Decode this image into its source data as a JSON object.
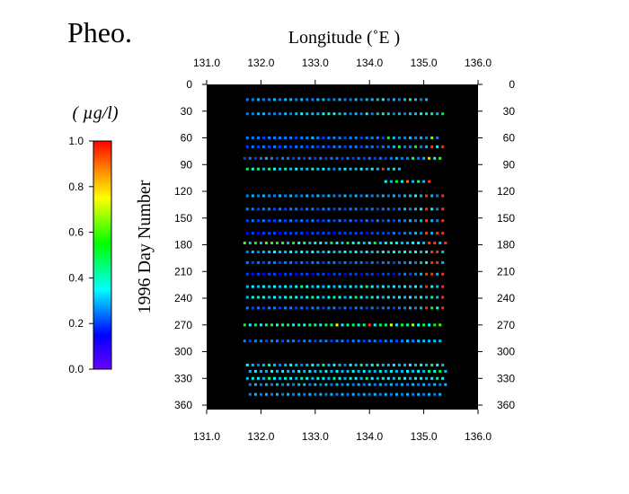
{
  "chart_data": {
    "type": "scatter",
    "title": "Pheo.",
    "xlabel": "Longitude (˚E )",
    "ylabel": "1996 Day Number",
    "colorbar_label": "( µg/l)",
    "xlim": [
      131.0,
      136.0
    ],
    "ylim": [
      0,
      365
    ],
    "y_inverted": true,
    "plot_background": "#000000",
    "x_ticks": [
      "131.0",
      "132.0",
      "133.0",
      "134.0",
      "135.0",
      "136.0"
    ],
    "x_tick_values": [
      131.0,
      132.0,
      133.0,
      134.0,
      135.0,
      136.0
    ],
    "y_ticks": [
      "0",
      "30",
      "60",
      "90",
      "120",
      "150",
      "180",
      "210",
      "240",
      "270",
      "300",
      "330",
      "360"
    ],
    "y_tick_values": [
      0,
      30,
      60,
      90,
      120,
      150,
      180,
      210,
      240,
      270,
      300,
      330,
      360
    ],
    "colorbar_ticks": [
      "0.0",
      "0.2",
      "0.4",
      "0.6",
      "0.8",
      "1.0"
    ],
    "colorbar_tick_values": [
      0.0,
      0.2,
      0.4,
      0.6,
      0.8,
      1.0
    ],
    "colorscale": "rainbow (violet at 0.0 to red at 1.0)",
    "cruises": [
      {
        "day": 17,
        "lon_start": 131.75,
        "lon_end": 135.1,
        "step": 0.1,
        "values": [
          0.25,
          0.25,
          0.3,
          0.25,
          0.25,
          0.3,
          0.25,
          0.3,
          0.3,
          0.25,
          0.3,
          0.25,
          0.25,
          0.3,
          0.3,
          0.25,
          0.25,
          0.3,
          0.25,
          0.25,
          0.3,
          0.25,
          0.3,
          0.3,
          0.3,
          0.35,
          0.25,
          0.3,
          0.25,
          0.3,
          0.45,
          0.3,
          0.25,
          0.3
        ]
      },
      {
        "day": 33,
        "lon_start": 131.75,
        "lon_end": 135.4,
        "step": 0.1,
        "values": [
          0.25,
          0.25,
          0.3,
          0.3,
          0.25,
          0.25,
          0.25,
          0.3,
          0.25,
          0.3,
          0.35,
          0.3,
          0.3,
          0.3,
          0.35,
          0.4,
          0.35,
          0.3,
          0.3,
          0.25,
          0.3,
          0.25,
          0.35,
          0.25,
          0.3,
          0.45,
          0.3,
          0.25,
          0.3,
          0.25,
          0.3,
          0.3,
          0.35,
          0.45,
          0.45,
          0.3,
          0.55,
          0.35
        ]
      },
      {
        "day": 60,
        "lon_start": 131.75,
        "lon_end": 135.3,
        "step": 0.1,
        "values": [
          0.25,
          0.25,
          0.25,
          0.2,
          0.25,
          0.25,
          0.25,
          0.25,
          0.25,
          0.2,
          0.25,
          0.25,
          0.3,
          0.25,
          0.2,
          0.25,
          0.25,
          0.25,
          0.2,
          0.25,
          0.25,
          0.2,
          0.25,
          0.25,
          0.25,
          0.2,
          0.55,
          0.3,
          0.25,
          0.25,
          0.3,
          0.25,
          0.3,
          0.25,
          0.65,
          0.25
        ]
      },
      {
        "day": 70,
        "lon_start": 131.75,
        "lon_end": 135.35,
        "step": 0.1,
        "values": [
          0.2,
          0.25,
          0.2,
          0.25,
          0.2,
          0.25,
          0.2,
          0.25,
          0.2,
          0.25,
          0.25,
          0.2,
          0.25,
          0.2,
          0.25,
          0.2,
          0.25,
          0.25,
          0.2,
          0.25,
          0.25,
          0.2,
          0.25,
          0.25,
          0.2,
          0.25,
          0.25,
          0.3,
          0.5,
          0.25,
          0.25,
          0.55,
          0.25,
          0.3,
          0.95,
          0.35,
          0.95
        ]
      },
      {
        "day": 83,
        "lon_start": 131.7,
        "lon_end": 135.3,
        "step": 0.1,
        "values": [
          0.2,
          0.25,
          0.2,
          0.25,
          0.3,
          0.25,
          0.2,
          0.25,
          0.25,
          0.2,
          0.25,
          0.2,
          0.25,
          0.2,
          0.25,
          0.2,
          0.25,
          0.25,
          0.2,
          0.25,
          0.2,
          0.25,
          0.2,
          0.25,
          0.2,
          0.25,
          0.2,
          0.25,
          0.3,
          0.25,
          0.25,
          0.45,
          0.25,
          0.3,
          0.8,
          0.35,
          0.6
        ]
      },
      {
        "day": 95,
        "lon_start": 131.75,
        "lon_end": 134.6,
        "step": 0.1,
        "values": [
          0.5,
          0.35,
          0.45,
          0.3,
          0.5,
          0.35,
          0.3,
          0.45,
          0.3,
          0.35,
          0.3,
          0.3,
          0.45,
          0.3,
          0.35,
          0.3,
          0.25,
          0.3,
          0.35,
          0.3,
          0.3,
          0.35,
          0.3,
          0.35,
          0.3,
          0.95,
          0.3,
          0.45,
          0.3,
          0.35
        ]
      },
      {
        "day": 109,
        "lon_start": 134.3,
        "lon_end": 135.1,
        "step": 0.1,
        "values": [
          0.35,
          0.3,
          0.55,
          0.35,
          0.9,
          0.3,
          0.45,
          0.3,
          0.95
        ]
      },
      {
        "day": 125,
        "lon_start": 131.75,
        "lon_end": 135.35,
        "step": 0.1,
        "values": [
          0.25,
          0.3,
          0.25,
          0.3,
          0.25,
          0.25,
          0.3,
          0.25,
          0.3,
          0.25,
          0.25,
          0.3,
          0.25,
          0.3,
          0.25,
          0.3,
          0.25,
          0.25,
          0.3,
          0.25,
          0.3,
          0.25,
          0.3,
          0.25,
          0.25,
          0.3,
          0.25,
          0.3,
          0.25,
          0.3,
          0.3,
          0.35,
          0.3,
          0.95,
          0.3,
          0.25,
          0.95
        ]
      },
      {
        "day": 140,
        "lon_start": 131.75,
        "lon_end": 135.35,
        "step": 0.1,
        "values": [
          0.25,
          0.25,
          0.2,
          0.25,
          0.25,
          0.2,
          0.25,
          0.2,
          0.25,
          0.25,
          0.2,
          0.25,
          0.25,
          0.2,
          0.25,
          0.25,
          0.2,
          0.25,
          0.2,
          0.25,
          0.25,
          0.2,
          0.25,
          0.25,
          0.2,
          0.25,
          0.25,
          0.2,
          0.25,
          0.3,
          0.25,
          0.3,
          0.35,
          0.95,
          0.35,
          0.25,
          0.95
        ]
      },
      {
        "day": 153,
        "lon_start": 131.75,
        "lon_end": 135.35,
        "step": 0.1,
        "values": [
          0.2,
          0.25,
          0.2,
          0.25,
          0.2,
          0.2,
          0.25,
          0.2,
          0.25,
          0.2,
          0.25,
          0.2,
          0.25,
          0.2,
          0.2,
          0.25,
          0.2,
          0.25,
          0.2,
          0.25,
          0.2,
          0.2,
          0.25,
          0.2,
          0.25,
          0.2,
          0.25,
          0.2,
          0.25,
          0.25,
          0.3,
          0.25,
          0.3,
          0.95,
          0.3,
          0.25,
          0.95
        ]
      },
      {
        "day": 167,
        "lon_start": 131.75,
        "lon_end": 135.35,
        "step": 0.1,
        "values": [
          0.15,
          0.2,
          0.15,
          0.2,
          0.2,
          0.2,
          0.15,
          0.2,
          0.2,
          0.2,
          0.2,
          0.15,
          0.2,
          0.2,
          0.2,
          0.2,
          0.15,
          0.2,
          0.2,
          0.2,
          0.2,
          0.2,
          0.15,
          0.2,
          0.2,
          0.2,
          0.2,
          0.25,
          0.2,
          0.25,
          0.25,
          0.3,
          0.25,
          0.95,
          0.3,
          0.95,
          0.95
        ]
      },
      {
        "day": 178,
        "lon_start": 131.7,
        "lon_end": 135.4,
        "step": 0.1,
        "values": [
          0.6,
          0.3,
          0.55,
          0.3,
          0.6,
          0.5,
          0.55,
          0.45,
          0.3,
          0.55,
          0.35,
          0.45,
          0.3,
          0.4,
          0.35,
          0.3,
          0.5,
          0.35,
          0.3,
          0.55,
          0.35,
          0.4,
          0.3,
          0.35,
          0.5,
          0.3,
          0.35,
          0.4,
          0.35,
          0.3,
          0.3,
          0.35,
          0.35,
          0.3,
          0.95,
          0.95,
          0.3,
          0.95
        ]
      },
      {
        "day": 188,
        "lon_start": 131.75,
        "lon_end": 135.4,
        "step": 0.1,
        "values": [
          0.25,
          0.3,
          0.25,
          0.3,
          0.3,
          0.35,
          0.3,
          0.3,
          0.35,
          0.3,
          0.35,
          0.3,
          0.35,
          0.3,
          0.3,
          0.35,
          0.3,
          0.3,
          0.35,
          0.3,
          0.35,
          0.3,
          0.35,
          0.3,
          0.3,
          0.35,
          0.3,
          0.35,
          0.3,
          0.35,
          0.3,
          0.35,
          0.3,
          0.35,
          0.95,
          0.95,
          0.3,
          0.95
        ]
      },
      {
        "day": 200,
        "lon_start": 131.75,
        "lon_end": 135.35,
        "step": 0.1,
        "values": [
          0.25,
          0.2,
          0.25,
          0.2,
          0.25,
          0.25,
          0.2,
          0.25,
          0.25,
          0.2,
          0.25,
          0.2,
          0.25,
          0.25,
          0.2,
          0.25,
          0.25,
          0.2,
          0.25,
          0.2,
          0.25,
          0.25,
          0.2,
          0.25,
          0.2,
          0.25,
          0.25,
          0.2,
          0.25,
          0.25,
          0.3,
          0.25,
          0.3,
          0.35,
          0.95,
          0.95,
          0.3
        ]
      },
      {
        "day": 213,
        "lon_start": 131.75,
        "lon_end": 135.35,
        "step": 0.1,
        "values": [
          0.2,
          0.15,
          0.2,
          0.15,
          0.2,
          0.2,
          0.15,
          0.2,
          0.2,
          0.15,
          0.2,
          0.2,
          0.15,
          0.2,
          0.2,
          0.15,
          0.2,
          0.2,
          0.15,
          0.2,
          0.2,
          0.15,
          0.2,
          0.2,
          0.15,
          0.2,
          0.2,
          0.15,
          0.2,
          0.25,
          0.2,
          0.25,
          0.3,
          0.95,
          0.95,
          0.3,
          0.95
        ]
      },
      {
        "day": 227,
        "lon_start": 131.75,
        "lon_end": 135.35,
        "step": 0.1,
        "values": [
          0.3,
          0.35,
          0.3,
          0.35,
          0.3,
          0.35,
          0.3,
          0.35,
          0.3,
          0.35,
          0.45,
          0.35,
          0.3,
          0.35,
          0.3,
          0.35,
          0.3,
          0.35,
          0.3,
          0.35,
          0.3,
          0.35,
          0.45,
          0.35,
          0.3,
          0.35,
          0.3,
          0.35,
          0.3,
          0.35,
          0.3,
          0.35,
          0.3,
          0.95,
          0.35,
          0.3,
          0.95
        ]
      },
      {
        "day": 239,
        "lon_start": 131.75,
        "lon_end": 135.35,
        "step": 0.1,
        "values": [
          0.3,
          0.35,
          0.4,
          0.35,
          0.3,
          0.35,
          0.3,
          0.35,
          0.4,
          0.35,
          0.3,
          0.35,
          0.45,
          0.35,
          0.3,
          0.35,
          0.45,
          0.35,
          0.3,
          0.35,
          0.5,
          0.35,
          0.3,
          0.45,
          0.35,
          0.3,
          0.35,
          0.3,
          0.35,
          0.3,
          0.35,
          0.3,
          0.35,
          0.3,
          0.45,
          0.3,
          0.95
        ]
      },
      {
        "day": 251,
        "lon_start": 131.75,
        "lon_end": 135.35,
        "step": 0.1,
        "values": [
          0.25,
          0.2,
          0.25,
          0.2,
          0.25,
          0.25,
          0.2,
          0.25,
          0.25,
          0.2,
          0.25,
          0.2,
          0.25,
          0.25,
          0.2,
          0.25,
          0.25,
          0.2,
          0.25,
          0.2,
          0.25,
          0.25,
          0.2,
          0.25,
          0.2,
          0.25,
          0.25,
          0.2,
          0.25,
          0.25,
          0.3,
          0.25,
          0.3,
          0.95,
          0.5,
          0.35,
          0.95
        ]
      },
      {
        "day": 270,
        "lon_start": 131.7,
        "lon_end": 135.35,
        "step": 0.1,
        "values": [
          0.55,
          0.35,
          0.5,
          0.35,
          0.45,
          0.5,
          0.35,
          0.45,
          0.5,
          0.35,
          0.45,
          0.35,
          0.5,
          0.45,
          0.35,
          0.5,
          0.45,
          0.75,
          0.35,
          0.45,
          0.5,
          0.35,
          0.45,
          0.95,
          0.35,
          0.5,
          0.45,
          0.75,
          0.35,
          0.5,
          0.45,
          0.7,
          0.35,
          0.5,
          0.35,
          0.55,
          0.6,
          0.45
        ]
      },
      {
        "day": 288,
        "lon_start": 131.7,
        "lon_end": 135.35,
        "step": 0.1,
        "values": [
          0.25,
          0.2,
          0.25,
          0.25,
          0.2,
          0.25,
          0.25,
          0.2,
          0.25,
          0.25,
          0.2,
          0.25,
          0.25,
          0.2,
          0.25,
          0.25,
          0.2,
          0.25,
          0.25,
          0.2,
          0.25,
          0.25,
          0.2,
          0.25,
          0.25,
          0.2,
          0.25,
          0.25,
          0.2,
          0.25,
          0.3,
          0.25,
          0.3,
          0.3,
          0.3,
          0.3,
          0.3,
          0.3
        ]
      },
      {
        "day": 315,
        "lon_start": 131.75,
        "lon_end": 135.4,
        "step": 0.1,
        "values": [
          0.35,
          0.3,
          0.25,
          0.3,
          0.45,
          0.3,
          0.25,
          0.3,
          0.35,
          0.3,
          0.25,
          0.3,
          0.35,
          0.3,
          0.45,
          0.3,
          0.35,
          0.3,
          0.25,
          0.35,
          0.3,
          0.45,
          0.3,
          0.35,
          0.45,
          0.3,
          0.3,
          0.35,
          0.3,
          0.3,
          0.35,
          0.3,
          0.35,
          0.3,
          0.45,
          0.35,
          0.3,
          0.3
        ]
      },
      {
        "day": 322,
        "lon_start": 131.8,
        "lon_end": 135.4,
        "step": 0.1,
        "values": [
          0.3,
          0.35,
          0.3,
          0.3,
          0.35,
          0.3,
          0.35,
          0.3,
          0.3,
          0.35,
          0.3,
          0.35,
          0.3,
          0.3,
          0.35,
          0.3,
          0.35,
          0.3,
          0.3,
          0.35,
          0.3,
          0.35,
          0.3,
          0.3,
          0.35,
          0.3,
          0.35,
          0.3,
          0.3,
          0.35,
          0.3,
          0.35,
          0.3,
          0.45,
          0.35,
          0.5,
          0.3
        ]
      },
      {
        "day": 330,
        "lon_start": 131.75,
        "lon_end": 135.4,
        "step": 0.1,
        "values": [
          0.3,
          0.4,
          0.35,
          0.3,
          0.45,
          0.35,
          0.3,
          0.4,
          0.35,
          0.3,
          0.45,
          0.35,
          0.3,
          0.4,
          0.35,
          0.3,
          0.45,
          0.35,
          0.3,
          0.4,
          0.35,
          0.3,
          0.45,
          0.35,
          0.3,
          0.4,
          0.35,
          0.3,
          0.45,
          0.35,
          0.3,
          0.4,
          0.35,
          0.3,
          0.35,
          0.45,
          0.35,
          0.4
        ]
      },
      {
        "day": 337,
        "lon_start": 131.8,
        "lon_end": 135.4,
        "step": 0.1,
        "values": [
          0.25,
          0.3,
          0.25,
          0.3,
          0.25,
          0.3,
          0.25,
          0.3,
          0.25,
          0.3,
          0.3,
          0.25,
          0.3,
          0.25,
          0.3,
          0.25,
          0.3,
          0.25,
          0.3,
          0.25,
          0.3,
          0.25,
          0.3,
          0.25,
          0.3,
          0.25,
          0.3,
          0.25,
          0.3,
          0.25,
          0.3,
          0.25,
          0.3,
          0.25,
          0.3,
          0.25,
          0.3
        ]
      },
      {
        "day": 348,
        "lon_start": 131.8,
        "lon_end": 135.3,
        "step": 0.1,
        "values": [
          0.25,
          0.3,
          0.25,
          0.3,
          0.25,
          0.3,
          0.25,
          0.3,
          0.25,
          0.3,
          0.25,
          0.3,
          0.25,
          0.3,
          0.25,
          0.3,
          0.25,
          0.3,
          0.25,
          0.3,
          0.25,
          0.3,
          0.25,
          0.3,
          0.25,
          0.3,
          0.25,
          0.3,
          0.25,
          0.3,
          0.25,
          0.3,
          0.25,
          0.3,
          0.25,
          0.3
        ]
      }
    ]
  }
}
